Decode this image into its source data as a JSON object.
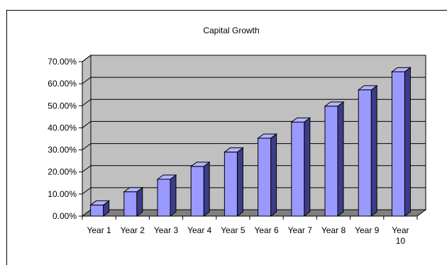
{
  "chart_data": {
    "type": "bar",
    "title": "Capital Growth",
    "categories": [
      "Year 1",
      "Year 2",
      "Year 3",
      "Year 4",
      "Year 5",
      "Year 6",
      "Year 7",
      "Year 8",
      "Year 9",
      "Year 10"
    ],
    "values": [
      5.0,
      11.0,
      16.7,
      22.5,
      29.0,
      35.3,
      42.6,
      49.8,
      57.2,
      65.4
    ],
    "ylim": [
      0,
      70
    ],
    "yticks": [
      "0.00%",
      "10.00%",
      "20.00%",
      "30.00%",
      "40.00%",
      "50.00%",
      "60.00%",
      "70.00%"
    ],
    "grid": true,
    "legend": "none",
    "colors": {
      "bar_front": "#9999ff",
      "bar_side": "#3c3c8a",
      "bar_top": "#b4b4ff",
      "wall": "#c0c0c0",
      "floor": "#808080"
    }
  }
}
